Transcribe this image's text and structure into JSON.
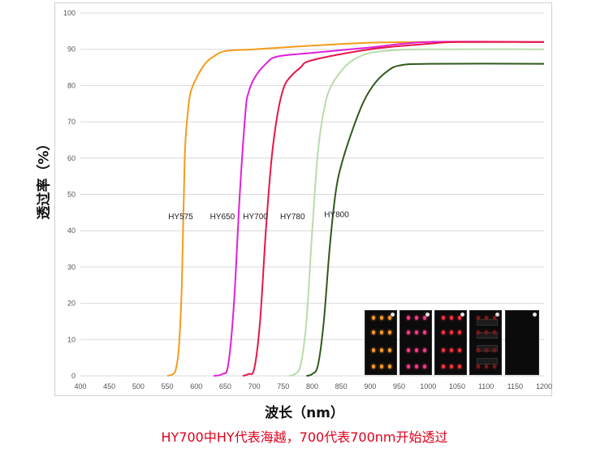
{
  "chart_data": {
    "type": "line",
    "xlabel": "波长（nm）",
    "ylabel": "透过率（%）",
    "xlim": [
      400,
      1200
    ],
    "ylim": [
      0,
      100
    ],
    "x_ticks": [
      400,
      450,
      500,
      550,
      600,
      650,
      700,
      750,
      800,
      850,
      900,
      950,
      1000,
      1050,
      1100,
      1150,
      1200
    ],
    "y_ticks": [
      0,
      10,
      20,
      30,
      40,
      50,
      60,
      70,
      80,
      90,
      100
    ],
    "grid": "horizontal",
    "series": [
      {
        "name": "HY575",
        "color": "#f39c1a",
        "x": [
          550,
          560,
          565,
          570,
          575,
          580,
          585,
          590,
          600,
          615,
          630,
          650,
          700,
          800,
          900,
          1000,
          1200
        ],
        "y": [
          0,
          0.5,
          2,
          8,
          25,
          60,
          72,
          78,
          82,
          86,
          88,
          89.5,
          90,
          91,
          91.8,
          92,
          92
        ]
      },
      {
        "name": "HY650",
        "color": "#e020d8",
        "x": [
          630,
          645,
          655,
          665,
          675,
          685,
          690,
          700,
          720,
          740,
          800,
          900,
          1000,
          1200
        ],
        "y": [
          0,
          0.5,
          3,
          20,
          50,
          73,
          78,
          82,
          86,
          88,
          89,
          90.5,
          92,
          92
        ]
      },
      {
        "name": "HY700",
        "color": "#e8154a",
        "x": [
          680,
          690,
          700,
          710,
          720,
          730,
          740,
          750,
          760,
          780,
          800,
          900,
          1000,
          1050,
          1200
        ],
        "y": [
          0,
          0.5,
          2,
          15,
          40,
          60,
          72,
          79,
          82,
          85,
          87,
          90,
          91.5,
          92,
          92
        ]
      },
      {
        "name": "HY780",
        "color": "#b8ddaa",
        "x": [
          760,
          770,
          780,
          790,
          800,
          810,
          820,
          830,
          850,
          870,
          900,
          950,
          1000,
          1200
        ],
        "y": [
          0,
          0.5,
          3,
          15,
          40,
          62,
          73,
          79,
          84,
          87,
          89,
          89.8,
          90,
          90
        ]
      },
      {
        "name": "HY800",
        "color": "#2e5a1c",
        "x": [
          790,
          800,
          810,
          820,
          830,
          840,
          850,
          870,
          890,
          910,
          930,
          950,
          1000,
          1200
        ],
        "y": [
          0,
          0.5,
          3,
          15,
          35,
          50,
          58,
          68,
          76,
          81,
          84,
          85.5,
          86,
          86
        ]
      }
    ],
    "series_labels": [
      {
        "text": "HY575",
        "x": 573,
        "y": 44
      },
      {
        "text": "HY650",
        "x": 645,
        "y": 44
      },
      {
        "text": "HY700",
        "x": 702,
        "y": 44
      },
      {
        "text": "HY780",
        "x": 766,
        "y": 44
      },
      {
        "text": "HY800",
        "x": 842,
        "y": 44.5
      }
    ]
  },
  "caption": "HY700中HY代表海越，700代表700nm开始透过",
  "inset_photos": {
    "description_icons": [
      "filter-photo-hy575",
      "filter-photo-hy650",
      "filter-photo-hy700",
      "filter-photo-hy780",
      "filter-photo-hy800"
    ],
    "dot_colors": [
      "#ff9a2a",
      "#ff3a8a",
      "#ff3040",
      "#7a1a1a",
      "#151515"
    ]
  }
}
